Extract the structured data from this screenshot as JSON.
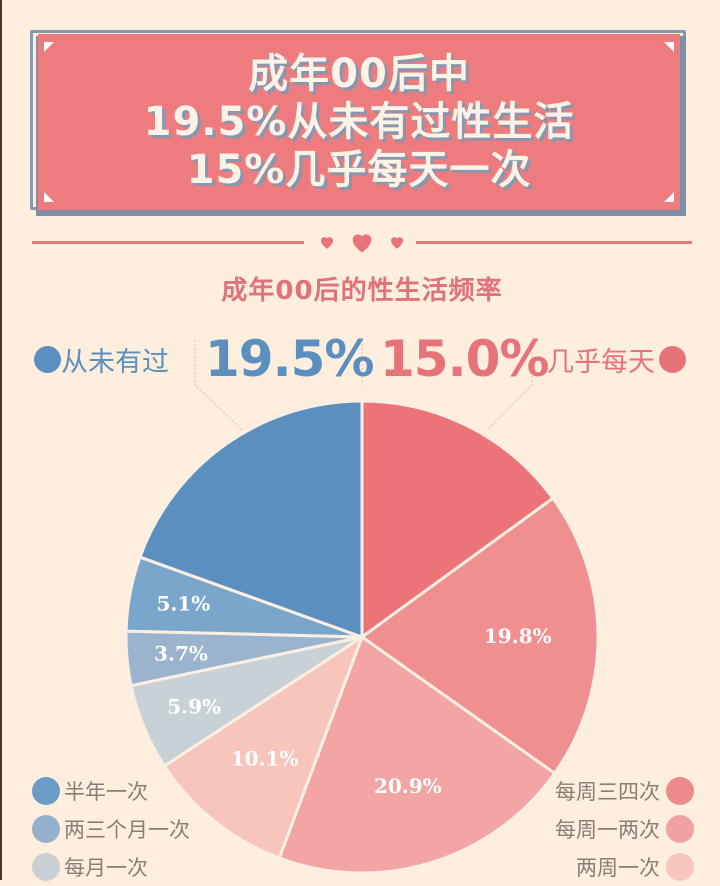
{
  "header": {
    "lines": [
      "成年00后中",
      "19.5%从未有过性生活",
      "15%几乎每天一次"
    ],
    "bg_color": "#ee7b7e",
    "shadow_color": "#8a96ad"
  },
  "subtitle": "成年00后的性生活频率",
  "callouts": {
    "left": {
      "label": "从未有过",
      "value": "19.5%",
      "color": "#5b8fbf"
    },
    "right": {
      "label": "几乎每天",
      "value": "15.0%",
      "color": "#e7737a"
    }
  },
  "legend": {
    "left": [
      {
        "label": "半年一次",
        "color": "#6a9cc6"
      },
      {
        "label": "两三个月一次",
        "color": "#94b0cd"
      },
      {
        "label": "每月一次",
        "color": "#c9d0d3"
      }
    ],
    "right": [
      {
        "label": "每周三四次",
        "color": "#ec8a8c"
      },
      {
        "label": "每周一两次",
        "color": "#f1a3a2"
      },
      {
        "label": "两周一次",
        "color": "#f7c6bf"
      }
    ]
  },
  "chart_data": {
    "type": "pie",
    "title": "成年00后的性生活频率",
    "start_angle": "12 o'clock, clockwise",
    "slices": [
      {
        "label": "几乎每天",
        "value": 15.0,
        "color": "#ec7479",
        "show_label": false
      },
      {
        "label": "每周三四次",
        "value": 19.8,
        "color": "#ef8f90",
        "show_label": true,
        "text": "19.8%"
      },
      {
        "label": "每周一两次",
        "value": 20.9,
        "color": "#f2a5a2",
        "show_label": true,
        "text": "20.9%"
      },
      {
        "label": "两周一次",
        "value": 10.1,
        "color": "#f8c5bd",
        "show_label": true,
        "text": "10.1%"
      },
      {
        "label": "每月一次",
        "value": 5.9,
        "color": "#c8d1d5",
        "show_label": true,
        "text": "5.9%"
      },
      {
        "label": "两三个月一次",
        "value": 3.7,
        "color": "#9ab4ce",
        "show_label": true,
        "text": "3.7%"
      },
      {
        "label": "半年一次",
        "value": 5.1,
        "color": "#7aa6cc",
        "show_label": true,
        "text": "5.1%"
      },
      {
        "label": "从未有过",
        "value": 19.5,
        "color": "#5a8fc0",
        "show_label": false
      }
    ],
    "callout_labels": [
      {
        "label": "从未有过",
        "text": "19.5%"
      },
      {
        "label": "几乎每天",
        "text": "15.0%"
      }
    ]
  }
}
